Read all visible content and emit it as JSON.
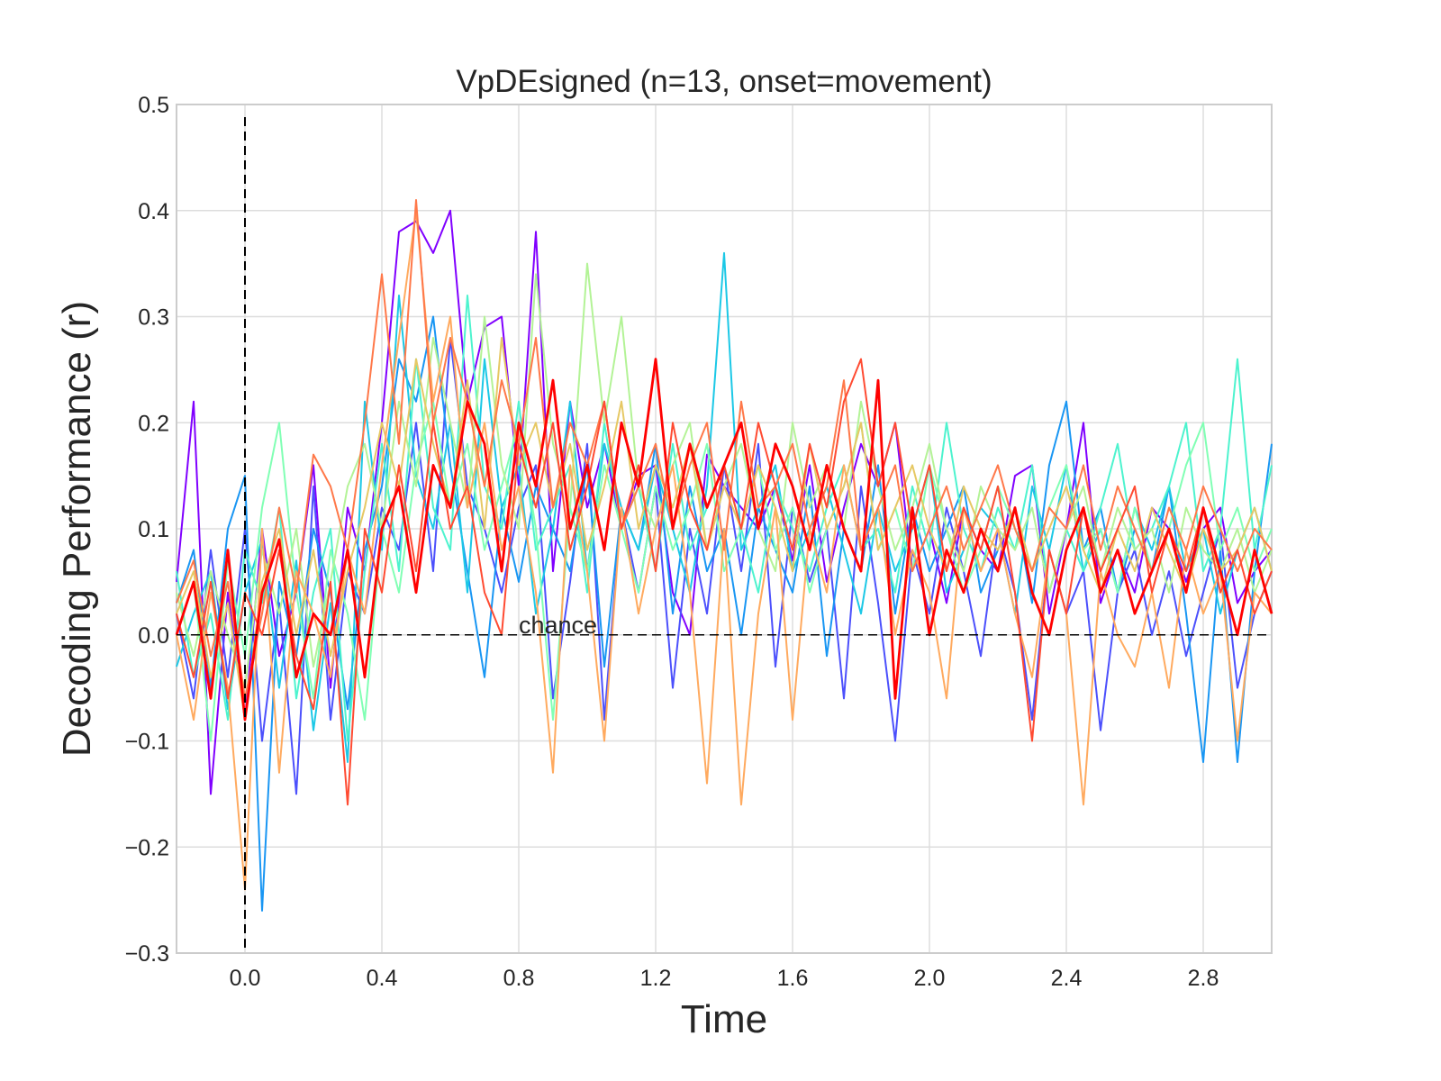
{
  "chart_data": {
    "type": "line",
    "title": "VpDEsigned (n=13, onset=movement)",
    "xlabel": "Time",
    "ylabel": "Decoding Performance (r)",
    "xlim": [
      -0.2,
      3.0
    ],
    "ylim": [
      -0.3,
      0.5
    ],
    "xticks": [
      0.0,
      0.4,
      0.8,
      1.2,
      1.6,
      2.0,
      2.4,
      2.8
    ],
    "xtick_labels": [
      "0.0",
      "0.4",
      "0.8",
      "1.2",
      "1.6",
      "2.0",
      "2.4",
      "2.8"
    ],
    "yticks": [
      -0.3,
      -0.2,
      -0.1,
      0.0,
      0.1,
      0.2,
      0.3,
      0.4,
      0.5
    ],
    "ytick_labels": [
      "−0.3",
      "−0.2",
      "−0.1",
      "0.0",
      "0.1",
      "0.2",
      "0.3",
      "0.4",
      "0.5"
    ],
    "grid": true,
    "legend": "none",
    "annotations": [
      {
        "text": "chance",
        "x": 0.8,
        "y": 0.0
      }
    ],
    "reference_lines": [
      {
        "orientation": "vertical",
        "value": 0.0,
        "style": "dashed",
        "color": "#000000"
      },
      {
        "orientation": "horizontal",
        "value": 0.0,
        "style": "dashed",
        "color": "#000000"
      }
    ],
    "x": [
      -0.2,
      -0.15,
      -0.1,
      -0.05,
      0.0,
      0.05,
      0.1,
      0.15,
      0.2,
      0.25,
      0.3,
      0.35,
      0.4,
      0.45,
      0.5,
      0.55,
      0.6,
      0.65,
      0.7,
      0.75,
      0.8,
      0.85,
      0.9,
      0.95,
      1.0,
      1.05,
      1.1,
      1.15,
      1.2,
      1.25,
      1.3,
      1.35,
      1.4,
      1.45,
      1.5,
      1.55,
      1.6,
      1.65,
      1.7,
      1.75,
      1.8,
      1.85,
      1.9,
      1.95,
      2.0,
      2.05,
      2.1,
      2.15,
      2.2,
      2.25,
      2.3,
      2.35,
      2.4,
      2.45,
      2.5,
      2.55,
      2.6,
      2.65,
      2.7,
      2.75,
      2.8,
      2.85,
      2.9,
      2.95,
      3.0
    ],
    "series": [
      {
        "color": "#8000ff",
        "values": [
          0.05,
          0.22,
          -0.15,
          0.04,
          -0.08,
          0.1,
          -0.02,
          0.04,
          0.16,
          -0.05,
          0.12,
          0.06,
          0.2,
          0.38,
          0.39,
          0.36,
          0.4,
          0.22,
          0.29,
          0.3,
          0.14,
          0.38,
          0.06,
          0.22,
          0.12,
          0.18,
          0.1,
          0.15,
          0.16,
          0.04,
          0.0,
          0.17,
          0.14,
          0.12,
          0.1,
          0.14,
          0.07,
          0.16,
          0.05,
          0.12,
          0.18,
          0.14,
          0.2,
          0.06,
          0.1,
          0.03,
          0.12,
          0.08,
          0.06,
          0.15,
          0.16,
          0.02,
          0.1,
          0.2,
          0.03,
          0.08,
          0.04,
          0.12,
          0.1,
          0.05,
          0.1,
          0.12,
          0.03,
          0.06,
          0.08
        ]
      },
      {
        "color": "#4c50fc",
        "values": [
          0.02,
          -0.06,
          0.08,
          -0.04,
          0.1,
          -0.1,
          0.03,
          -0.15,
          0.14,
          -0.08,
          0.06,
          0.02,
          0.12,
          0.08,
          0.2,
          0.06,
          0.28,
          0.14,
          0.1,
          0.04,
          0.12,
          0.16,
          -0.06,
          0.05,
          0.18,
          -0.08,
          0.12,
          0.04,
          0.14,
          -0.05,
          0.1,
          0.02,
          0.16,
          0.06,
          0.18,
          -0.03,
          0.12,
          0.05,
          0.1,
          -0.06,
          0.14,
          0.03,
          -0.1,
          0.08,
          0.02,
          0.12,
          0.06,
          -0.02,
          0.1,
          0.04,
          -0.08,
          0.08,
          0.02,
          0.06,
          -0.09,
          0.04,
          0.08,
          0.0,
          0.06,
          -0.02,
          0.04,
          0.1,
          -0.05,
          0.02,
          0.06
        ]
      },
      {
        "color": "#1996f3",
        "values": [
          0.03,
          0.08,
          -0.05,
          0.1,
          0.15,
          -0.26,
          0.05,
          -0.02,
          0.1,
          0.04,
          -0.07,
          0.08,
          0.14,
          0.26,
          0.22,
          0.3,
          0.16,
          0.06,
          -0.04,
          0.12,
          0.05,
          0.14,
          0.1,
          0.06,
          0.16,
          -0.03,
          0.12,
          0.08,
          0.18,
          0.02,
          0.14,
          0.06,
          0.1,
          0.0,
          0.12,
          0.08,
          0.04,
          0.14,
          -0.02,
          0.1,
          0.06,
          0.16,
          0.02,
          0.12,
          0.06,
          0.1,
          0.14,
          0.04,
          0.08,
          0.12,
          0.03,
          0.16,
          0.22,
          0.08,
          0.12,
          0.04,
          0.1,
          0.06,
          0.14,
          0.02,
          -0.12,
          0.08,
          -0.12,
          0.06,
          0.18
        ]
      },
      {
        "color": "#1cc8e6",
        "values": [
          -0.03,
          0.02,
          0.06,
          -0.07,
          0.04,
          0.09,
          -0.05,
          0.07,
          -0.09,
          0.03,
          -0.12,
          0.22,
          0.08,
          0.32,
          0.15,
          0.1,
          0.2,
          0.04,
          0.26,
          0.12,
          0.16,
          0.02,
          0.1,
          0.22,
          0.06,
          0.18,
          0.12,
          0.08,
          0.16,
          0.1,
          0.04,
          0.14,
          0.36,
          0.08,
          0.12,
          0.16,
          0.06,
          0.1,
          0.14,
          0.08,
          0.02,
          0.12,
          0.06,
          0.1,
          0.16,
          0.04,
          0.08,
          0.12,
          0.1,
          0.02,
          0.14,
          0.08,
          0.16,
          0.06,
          0.1,
          0.04,
          0.12,
          0.08,
          0.14,
          0.06,
          0.1,
          0.02,
          0.08,
          0.12,
          0.06
        ]
      },
      {
        "color": "#4df3ce",
        "values": [
          0.06,
          -0.04,
          0.02,
          -0.08,
          0.08,
          0.03,
          0.12,
          -0.06,
          0.04,
          0.1,
          -0.1,
          0.06,
          0.18,
          0.06,
          0.26,
          0.12,
          0.08,
          0.32,
          0.14,
          0.1,
          0.22,
          0.08,
          0.12,
          0.16,
          0.04,
          0.2,
          0.1,
          0.14,
          0.06,
          0.18,
          0.08,
          0.12,
          0.16,
          0.1,
          0.04,
          0.14,
          0.1,
          0.06,
          0.12,
          0.16,
          0.08,
          0.1,
          0.04,
          0.14,
          0.08,
          0.2,
          0.1,
          0.06,
          0.12,
          0.08,
          0.16,
          0.04,
          0.1,
          0.06,
          0.12,
          0.18,
          0.08,
          0.1,
          0.14,
          0.2,
          0.06,
          0.1,
          0.26,
          0.08,
          0.16
        ]
      },
      {
        "color": "#81ffb4",
        "values": [
          0.0,
          0.05,
          -0.1,
          0.07,
          -0.02,
          0.12,
          0.2,
          0.04,
          -0.06,
          0.08,
          0.02,
          -0.08,
          0.1,
          0.04,
          0.16,
          0.22,
          0.12,
          0.18,
          0.08,
          0.14,
          0.2,
          0.1,
          -0.08,
          0.12,
          0.06,
          0.16,
          0.1,
          0.04,
          0.14,
          0.08,
          0.12,
          0.18,
          0.06,
          0.1,
          0.16,
          0.08,
          0.12,
          0.04,
          0.1,
          0.14,
          0.2,
          0.08,
          0.12,
          0.06,
          0.16,
          0.1,
          0.04,
          0.08,
          0.14,
          0.1,
          0.06,
          0.12,
          0.16,
          0.08,
          0.1,
          0.04,
          0.12,
          0.06,
          0.1,
          0.16,
          0.2,
          0.08,
          0.12,
          0.06,
          0.1
        ]
      },
      {
        "color": "#b3f396",
        "values": [
          0.04,
          -0.02,
          0.06,
          0.0,
          -0.05,
          0.08,
          0.02,
          0.1,
          -0.03,
          0.05,
          0.14,
          0.18,
          0.1,
          0.22,
          0.14,
          0.28,
          0.2,
          0.12,
          0.3,
          0.16,
          0.1,
          0.34,
          0.18,
          0.12,
          0.35,
          0.2,
          0.3,
          0.14,
          0.1,
          0.16,
          0.2,
          0.08,
          0.14,
          0.18,
          0.1,
          0.06,
          0.2,
          0.12,
          0.16,
          0.1,
          0.22,
          0.14,
          0.08,
          0.12,
          0.18,
          0.1,
          0.06,
          0.14,
          0.1,
          0.08,
          0.12,
          0.04,
          0.1,
          0.14,
          0.06,
          0.12,
          0.08,
          0.1,
          0.04,
          0.12,
          0.08,
          0.06,
          0.1,
          0.04,
          0.08
        ]
      },
      {
        "color": "#e6c864",
        "values": [
          0.02,
          0.06,
          -0.04,
          0.03,
          -0.08,
          0.05,
          0.1,
          0.0,
          0.08,
          -0.02,
          0.06,
          0.12,
          0.2,
          0.14,
          0.26,
          0.18,
          0.12,
          0.24,
          0.1,
          0.28,
          0.16,
          0.2,
          0.12,
          0.18,
          0.08,
          0.14,
          0.22,
          0.1,
          0.16,
          0.12,
          0.18,
          0.08,
          0.14,
          0.1,
          0.16,
          0.12,
          0.06,
          0.18,
          0.1,
          0.14,
          0.2,
          0.08,
          0.12,
          0.16,
          0.1,
          0.06,
          0.14,
          0.1,
          0.08,
          0.12,
          0.06,
          0.1,
          0.14,
          0.08,
          0.04,
          0.1,
          0.06,
          0.12,
          0.08,
          0.04,
          0.1,
          0.06,
          0.08,
          0.12,
          0.06
        ]
      },
      {
        "color": "#ffaa5f",
        "values": [
          0.0,
          -0.08,
          0.04,
          -0.05,
          -0.24,
          0.1,
          -0.13,
          0.06,
          0.02,
          -0.04,
          0.08,
          0.02,
          0.16,
          0.28,
          0.4,
          0.22,
          0.3,
          0.12,
          0.2,
          0.08,
          0.14,
          0.04,
          -0.13,
          0.16,
          0.06,
          -0.1,
          0.12,
          0.02,
          0.1,
          0.16,
          0.04,
          -0.14,
          0.1,
          -0.16,
          0.02,
          0.12,
          -0.08,
          0.1,
          0.04,
          0.16,
          0.08,
          0.12,
          0.0,
          0.08,
          0.04,
          -0.06,
          0.12,
          0.06,
          0.1,
          0.02,
          -0.04,
          0.08,
          0.02,
          -0.16,
          0.06,
          0.0,
          -0.03,
          0.04,
          -0.05,
          0.08,
          0.02,
          0.06,
          -0.1,
          0.04,
          0.02
        ]
      },
      {
        "color": "#ff7849",
        "values": [
          0.03,
          0.07,
          -0.02,
          0.05,
          -0.06,
          0.02,
          0.12,
          0.04,
          0.17,
          0.14,
          0.08,
          0.2,
          0.34,
          0.18,
          0.41,
          0.2,
          0.28,
          0.22,
          0.14,
          0.24,
          0.18,
          0.28,
          0.12,
          0.2,
          0.16,
          0.22,
          0.1,
          0.14,
          0.18,
          0.1,
          0.16,
          0.2,
          0.08,
          0.22,
          0.12,
          0.14,
          0.18,
          0.1,
          0.14,
          0.24,
          0.08,
          0.12,
          0.16,
          0.06,
          0.1,
          0.14,
          0.08,
          0.12,
          0.16,
          0.1,
          0.06,
          0.12,
          0.1,
          0.16,
          0.08,
          0.14,
          0.1,
          0.06,
          0.12,
          0.08,
          0.14,
          0.1,
          0.06,
          0.1,
          0.08
        ]
      },
      {
        "color": "#ff4b32",
        "values": [
          0.02,
          -0.04,
          0.05,
          -0.06,
          0.04,
          0.0,
          0.08,
          -0.02,
          -0.07,
          0.05,
          -0.16,
          0.1,
          0.04,
          0.16,
          0.06,
          0.2,
          0.1,
          0.14,
          0.04,
          0.0,
          0.18,
          0.12,
          0.2,
          0.08,
          0.14,
          0.22,
          0.1,
          0.16,
          0.06,
          0.2,
          0.12,
          0.08,
          0.16,
          0.1,
          0.2,
          0.14,
          0.08,
          0.18,
          0.12,
          0.22,
          0.26,
          0.14,
          0.2,
          0.1,
          0.16,
          0.06,
          0.12,
          0.08,
          0.14,
          0.04,
          -0.1,
          0.08,
          0.02,
          0.12,
          0.06,
          0.1,
          0.14,
          0.04,
          0.1,
          0.06,
          0.12,
          0.04,
          0.08,
          0.02,
          0.06
        ]
      },
      {
        "color": "#ff0000",
        "values": [
          0.0,
          0.05,
          -0.06,
          0.08,
          -0.08,
          0.04,
          0.09,
          -0.04,
          0.02,
          0.0,
          0.08,
          -0.04,
          0.1,
          0.14,
          0.04,
          0.16,
          0.12,
          0.22,
          0.18,
          0.06,
          0.2,
          0.14,
          0.24,
          0.1,
          0.16,
          0.08,
          0.2,
          0.14,
          0.26,
          0.1,
          0.18,
          0.12,
          0.16,
          0.2,
          0.1,
          0.18,
          0.14,
          0.08,
          0.16,
          0.1,
          0.06,
          0.24,
          -0.06,
          0.12,
          0.0,
          0.08,
          0.04,
          0.1,
          0.06,
          0.12,
          0.04,
          0.0,
          0.08,
          0.12,
          0.04,
          0.08,
          0.02,
          0.06,
          0.1,
          0.04,
          0.12,
          0.06,
          0.0,
          0.08,
          0.02
        ]
      }
    ]
  }
}
